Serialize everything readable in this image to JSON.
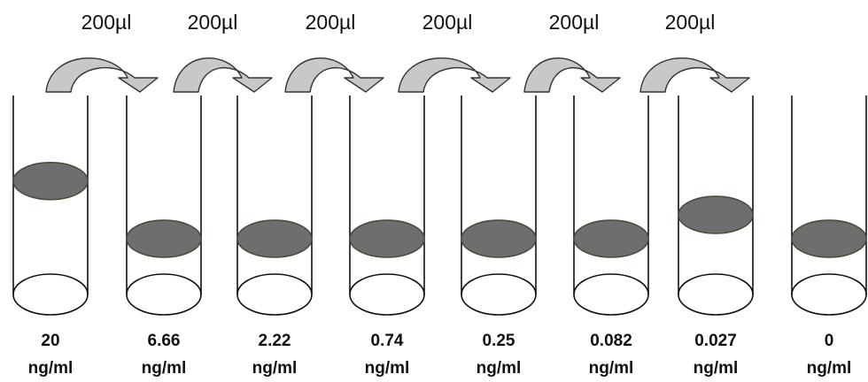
{
  "transfers": [
    {
      "volume": "200µl"
    },
    {
      "volume": "200µl"
    },
    {
      "volume": "200µl"
    },
    {
      "volume": "200µl"
    },
    {
      "volume": "200µl"
    },
    {
      "volume": "200µl"
    }
  ],
  "tubes": [
    {
      "value": "20",
      "unit": "ng/ml",
      "fill_level": 0.57
    },
    {
      "value": "6.66",
      "unit": "ng/ml",
      "fill_level": 0.28
    },
    {
      "value": "2.22",
      "unit": "ng/ml",
      "fill_level": 0.28
    },
    {
      "value": "0.74",
      "unit": "ng/ml",
      "fill_level": 0.28
    },
    {
      "value": "0.25",
      "unit": "ng/ml",
      "fill_level": 0.28
    },
    {
      "value": "0.082",
      "unit": "ng/ml",
      "fill_level": 0.28
    },
    {
      "value": "0.027",
      "unit": "ng/ml",
      "fill_level": 0.4
    },
    {
      "value": "0",
      "unit": "ng/ml",
      "fill_level": 0.28
    }
  ],
  "colors": {
    "liquid": "#6e6e6e",
    "liquid_stroke": "#4a4a3a",
    "tube_stroke": "#111111",
    "arrow_fill": "#c8c8c8",
    "arrow_stroke": "#333333"
  }
}
